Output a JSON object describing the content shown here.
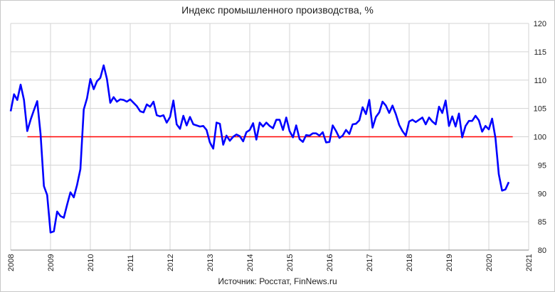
{
  "chart_data": {
    "type": "line",
    "title": "Индекс промышленного производства, %",
    "source": "Источник: Росстат, FinNews.ru",
    "xlabel": "",
    "ylabel": "",
    "x_ticks": [
      "2008",
      "2009",
      "2010",
      "2011",
      "2012",
      "2013",
      "2014",
      "2015",
      "2016",
      "2017",
      "2018",
      "2019",
      "2020",
      "2021"
    ],
    "y_ticks": [
      80,
      85,
      90,
      95,
      100,
      105,
      110,
      115,
      120
    ],
    "xlim": [
      2008,
      2021
    ],
    "ylim": [
      80,
      120
    ],
    "grid": true,
    "colors": {
      "series": "#0000ff",
      "reference": "#ff0000",
      "grid": "#d3d3d3"
    },
    "reference_line": {
      "value": 100,
      "x_start": 2008.42,
      "x_end": 2020.6
    },
    "series": [
      {
        "x_start": 2008.0,
        "x_step": 0.08333,
        "values": [
          104.5,
          107.5,
          106.5,
          109.2,
          106.5,
          101,
          103,
          104.7,
          106.3,
          100.5,
          91.3,
          89.7,
          83.1,
          83.3,
          86.8,
          86,
          85.7,
          88,
          90.2,
          89.3,
          91.5,
          94.3,
          104.8,
          106.8,
          110.2,
          108.4,
          109.8,
          110.4,
          112.6,
          110.2,
          106,
          107,
          106.2,
          106.6,
          106.5,
          106.2,
          106.6,
          106,
          105.4,
          104.5,
          104.3,
          105.7,
          105.3,
          106.2,
          103.8,
          103.6,
          103.8,
          102.5,
          103.5,
          106.4,
          102.2,
          101.4,
          103.7,
          102,
          103.5,
          102.2,
          102,
          101.8,
          101.9,
          101.2,
          99,
          97.9,
          102.5,
          102.3,
          98.6,
          100.2,
          99.3,
          100,
          100.4,
          100.1,
          99.2,
          100.8,
          101.2,
          102.4,
          99.5,
          102.5,
          101.8,
          102.5,
          101.9,
          101.5,
          103,
          103,
          101.2,
          103.4,
          101,
          99.9,
          102,
          99.6,
          99.1,
          100.3,
          100.2,
          100.6,
          100.6,
          100.2,
          100.8,
          99,
          99.1,
          102,
          101,
          99.8,
          100.2,
          101.2,
          100.5,
          102.2,
          102.3,
          102.9,
          105.2,
          104,
          106.5,
          101.6,
          103.5,
          104.3,
          106.2,
          105.5,
          104.2,
          105.5,
          104,
          102.1,
          101,
          100.2,
          102.7,
          103,
          102.6,
          103,
          103.4,
          102.2,
          103.4,
          102.7,
          102.2,
          105.3,
          104.2,
          106.4,
          101.9,
          103.6,
          101.8,
          104.1,
          99.9,
          101.9,
          102.8,
          102.8,
          103.7,
          102.9,
          100.9,
          101.9,
          101.3,
          103.2,
          99.8,
          93.4,
          90.5,
          90.7,
          92
        ]
      }
    ]
  }
}
